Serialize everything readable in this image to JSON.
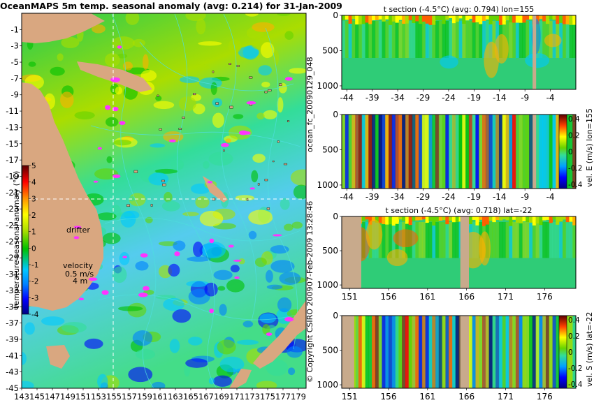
{
  "main_title": "OceanMAPS 5m temp. seasonal anomaly (avg: 0.214) for 31-Jan-2009",
  "colors": {
    "land": "#d9a780",
    "section_land": "#c8aa8c",
    "contour": "#4fdede",
    "magenta": "#ff33ff"
  },
  "colormap": [
    "#00007f",
    "#0000ff",
    "#0080ff",
    "#00c8ff",
    "#33dd99",
    "#00c000",
    "#66d300",
    "#aadd00",
    "#ffff00",
    "#ffb000",
    "#ff6000",
    "#ff0000",
    "#a00000",
    "#5a0000"
  ],
  "map": {
    "lon_labels": [
      "143",
      "145",
      "147",
      "149",
      "151",
      "153",
      "155",
      "157",
      "159",
      "161",
      "163",
      "165",
      "167",
      "169",
      "171",
      "173",
      "175",
      "177",
      "179"
    ],
    "lat_labels": [
      "-1",
      "-3",
      "-5",
      "-7",
      "-9",
      "-11",
      "-13",
      "-15",
      "-17",
      "-19",
      "-21",
      "-23",
      "-25",
      "-27",
      "-29",
      "-31",
      "-33",
      "-35",
      "-37",
      "-39",
      "-41",
      "-43",
      "-45"
    ],
    "annotations": {
      "drifter": "drifter",
      "velocity": "velocity",
      "speed": "0.5 m/s",
      "scale_length": "4 m"
    },
    "colorbar": {
      "ticks": [
        "5",
        "4",
        "3",
        "2",
        "1",
        "0",
        "-1",
        "-2",
        "-3",
        "-4"
      ],
      "label": "temperature seasonal anomaly (°C)"
    }
  },
  "side_text": {
    "forecast_id": "ocean_fc_20090129_048",
    "run_time": "07-Feb-2009 13:28:46",
    "copyright": "© Copyright CSIRO 2009"
  },
  "chart_data": [
    {
      "type": "heatmap",
      "title": "OceanMAPS 5m temp. seasonal anomaly (avg: 0.214) for 31-Jan-2009",
      "x_ticks": [
        143,
        145,
        147,
        149,
        151,
        153,
        155,
        157,
        159,
        161,
        163,
        165,
        167,
        169,
        171,
        173,
        175,
        177,
        179
      ],
      "y_ticks": [
        -1,
        -3,
        -5,
        -7,
        -9,
        -11,
        -13,
        -15,
        -17,
        -19,
        -21,
        -23,
        -25,
        -27,
        -29,
        -31,
        -33,
        -35,
        -37,
        -39,
        -41,
        -43,
        -45
      ],
      "xlim": [
        143,
        180
      ],
      "ylim": [
        -45,
        1
      ],
      "colorbar_range": [
        -4,
        5
      ],
      "colorbar_label": "temperature seasonal anomaly (°C)",
      "section_lines": {
        "lon": 155,
        "lat": -22
      },
      "annotations": [
        "drifter",
        "velocity",
        "0.5 m/s",
        "4 m"
      ]
    },
    {
      "type": "heatmap",
      "title": "t section (-4.5°C) (avg: 0.794) lon=155",
      "x_ticks": [
        -44,
        -39,
        -34,
        -29,
        -24,
        -19,
        -14,
        -9,
        -4
      ],
      "y_ticks": [
        0,
        500,
        1000
      ],
      "xlim": [
        -45,
        1
      ],
      "ylim": [
        1050,
        0
      ]
    },
    {
      "type": "heatmap",
      "x_ticks": [
        -44,
        -39,
        -34,
        -29,
        -24,
        -19,
        -14,
        -9,
        -4
      ],
      "y_ticks": [
        0,
        500,
        1000
      ],
      "xlim": [
        -45,
        1
      ],
      "ylim": [
        1050,
        0
      ],
      "colorbar_ticks": [
        0.4,
        0.2,
        0,
        -0.2,
        -0.4
      ],
      "colorbar_label": "vel. E (m/s) lon=155"
    },
    {
      "type": "heatmap",
      "title": "t section (-4.5°C) (avg: 0.718) lat=-22",
      "x_ticks": [
        151,
        156,
        161,
        166,
        171,
        176
      ],
      "y_ticks": [
        0,
        500,
        1000
      ],
      "xlim": [
        150,
        180
      ],
      "ylim": [
        1050,
        0
      ]
    },
    {
      "type": "heatmap",
      "x_ticks": [
        151,
        156,
        161,
        166,
        171,
        176
      ],
      "y_ticks": [
        0,
        500,
        1000
      ],
      "xlim": [
        150,
        180
      ],
      "ylim": [
        1050,
        0
      ],
      "colorbar_ticks": [
        0.4,
        0.2,
        0,
        -0.2,
        -0.4
      ],
      "colorbar_label": "vel. S (m/s) lat=-22"
    }
  ]
}
